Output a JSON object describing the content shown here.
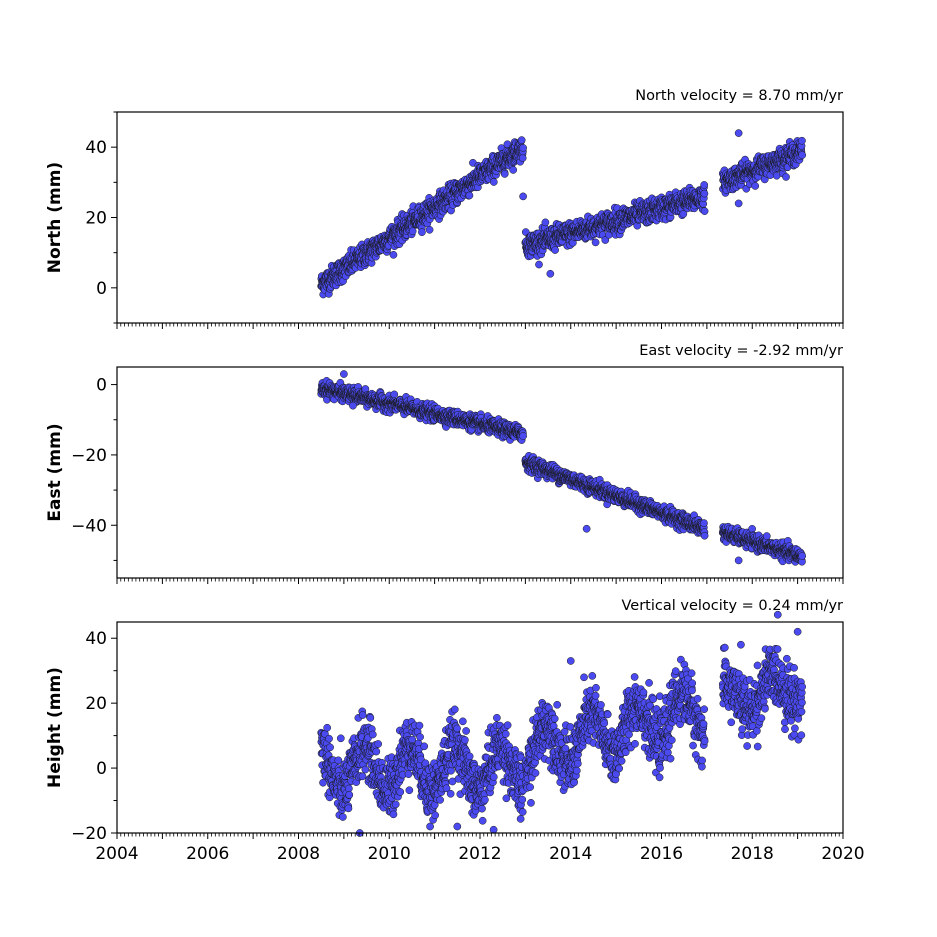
{
  "chart_data": [
    {
      "type": "scatter",
      "title": "North velocity = 8.70 mm/yr",
      "ylabel": "North (mm)",
      "xlim": [
        2004,
        2020
      ],
      "ylim": [
        -10,
        50
      ],
      "yticks": [
        0,
        20,
        40
      ],
      "xticks_labeled": false,
      "marker_color": "#4a4af0",
      "marker_edge": "#1a1a1a",
      "segments": [
        {
          "x_start": 2008.5,
          "x_end": 2012.95,
          "y_start": 1,
          "y_end": 40,
          "noise": 1.6
        },
        {
          "x_start": 2013.0,
          "x_end": 2016.95,
          "y_start": 12,
          "y_end": 26,
          "noise": 1.6
        },
        {
          "x_start": 2017.35,
          "x_end": 2019.1,
          "y_start": 30,
          "y_end": 39,
          "noise": 1.5
        }
      ],
      "outliers": [
        [
          2012.95,
          26
        ],
        [
          2013.55,
          4
        ],
        [
          2017.7,
          44
        ],
        [
          2017.7,
          24
        ]
      ]
    },
    {
      "type": "scatter",
      "title": "East velocity = -2.92 mm/yr",
      "ylabel": "East (mm)",
      "xlim": [
        2004,
        2020
      ],
      "ylim": [
        -55,
        5
      ],
      "yticks": [
        0,
        -20,
        -40
      ],
      "xticks_labeled": false,
      "marker_color": "#4a4af0",
      "marker_edge": "#1a1a1a",
      "segments": [
        {
          "x_start": 2008.5,
          "x_end": 2012.95,
          "y_start": -1,
          "y_end": -14,
          "noise": 1.0
        },
        {
          "x_start": 2013.0,
          "x_end": 2016.95,
          "y_start": -22,
          "y_end": -41,
          "noise": 1.0
        },
        {
          "x_start": 2017.35,
          "x_end": 2019.1,
          "y_start": -42,
          "y_end": -49,
          "noise": 1.0
        }
      ],
      "outliers": [
        [
          2009.0,
          3
        ],
        [
          2009.2,
          -6
        ],
        [
          2014.35,
          -41
        ],
        [
          2017.7,
          -50
        ]
      ]
    },
    {
      "type": "scatter",
      "title": "Vertical velocity = 0.24 mm/yr",
      "ylabel": "Height (mm)",
      "xlim": [
        2004,
        2020
      ],
      "ylim": [
        -20,
        45
      ],
      "yticks": [
        40,
        20,
        0,
        -20
      ],
      "xticks": [
        2004,
        2006,
        2008,
        2010,
        2012,
        2014,
        2016,
        2018,
        2020
      ],
      "xticks_labeled": true,
      "marker_color": "#4a4af0",
      "marker_edge": "#1a1a1a",
      "segments": [
        {
          "x_start": 2008.5,
          "x_end": 2012.95,
          "y_start": 0,
          "y_end": 0,
          "noise": 4.5,
          "seasonal_amp": 7
        },
        {
          "x_start": 2013.0,
          "x_end": 2016.95,
          "y_start": 5,
          "y_end": 18,
          "noise": 4.5,
          "seasonal_amp": 7
        },
        {
          "x_start": 2017.35,
          "x_end": 2019.1,
          "y_start": 20,
          "y_end": 26,
          "noise": 4.5,
          "seasonal_amp": 5
        }
      ],
      "outliers": [
        [
          2009.35,
          -20
        ],
        [
          2010.9,
          -18
        ],
        [
          2011.5,
          -18
        ],
        [
          2012.3,
          -19
        ],
        [
          2014.0,
          33
        ],
        [
          2017.75,
          38
        ],
        [
          2019.0,
          42
        ]
      ]
    }
  ]
}
